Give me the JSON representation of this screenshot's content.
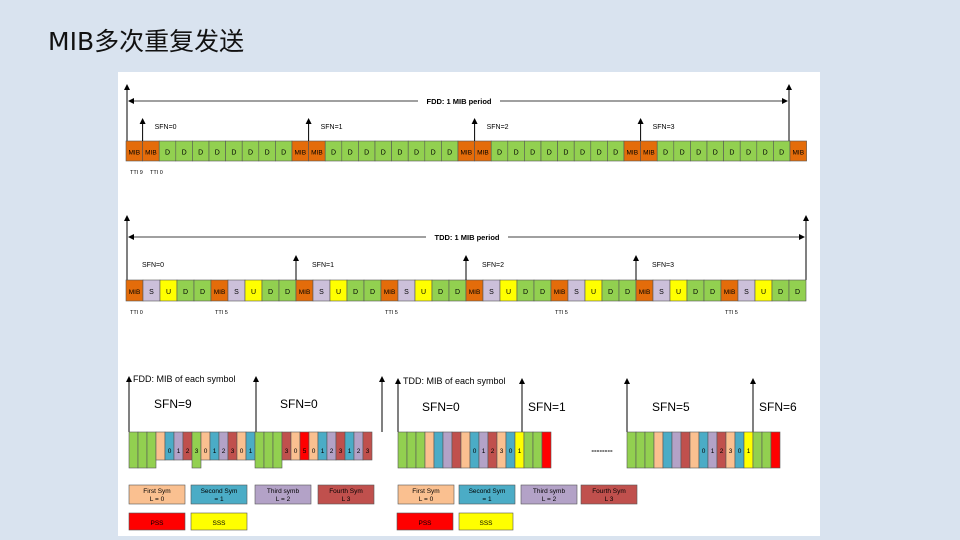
{
  "title": "MIB多次重复发送",
  "colors": {
    "mib": "#e46c0a",
    "d": "#92d050",
    "s": "#ccc0da",
    "u": "#ffff00",
    "l0": "#fac090",
    "l1": "#4bacc6",
    "l2": "#b3a2c7",
    "l3": "#c0504d",
    "pss": "#ff0000",
    "sss": "#ffff00"
  },
  "fdd": {
    "period_label": "FDD: 1 MIB period",
    "sfn_labels": [
      "SFN=0",
      "SFN=1",
      "SFN=2",
      "SFN=3"
    ],
    "cells": [
      "MIB",
      "MIB",
      "D",
      "D",
      "D",
      "D",
      "D",
      "D",
      "D",
      "D",
      "MIB",
      "MIB",
      "D",
      "D",
      "D",
      "D",
      "D",
      "D",
      "D",
      "D",
      "MIB",
      "MIB",
      "D",
      "D",
      "D",
      "D",
      "D",
      "D",
      "D",
      "D",
      "MIB",
      "MIB",
      "D",
      "D",
      "D",
      "D",
      "D",
      "D",
      "D",
      "D",
      "MIB"
    ],
    "tti_labels": [
      "TTI 9",
      "TTI 0"
    ]
  },
  "tdd": {
    "period_label": "TDD: 1 MIB period",
    "sfn_labels": [
      "SFN=0",
      "SFN=1",
      "SFN=2",
      "SFN=3"
    ],
    "cells": [
      "MIB",
      "S",
      "U",
      "D",
      "D",
      "MIB",
      "S",
      "U",
      "D",
      "D",
      "MIB",
      "S",
      "U",
      "D",
      "D",
      "MIB",
      "S",
      "U",
      "D",
      "D",
      "MIB",
      "S",
      "U",
      "D",
      "D",
      "MIB",
      "S",
      "U",
      "D",
      "D",
      "MIB",
      "S",
      "U",
      "D",
      "D",
      "MIB",
      "S",
      "U",
      "D",
      "D"
    ],
    "tti_labels": [
      "TTI 0",
      "TTI 5",
      "TTI 5",
      "TTI 5",
      "TTI 5"
    ]
  },
  "fdd_symbol": {
    "title": "FDD: MIB of each symbol",
    "sfn_labels": [
      "SFN=9",
      "SFN=0"
    ],
    "digits_1": [
      "0",
      "1",
      "2",
      "3",
      "0",
      "1",
      "2",
      "3",
      "0",
      "1",
      "2"
    ],
    "digits_2": [
      "3",
      "0",
      "5",
      "0",
      "1",
      "2",
      "3",
      "1",
      "2",
      "3"
    ]
  },
  "tdd_symbol": {
    "title": "TDD: MIB of each symbol",
    "sfn_labels": [
      "SFN=0",
      "SFN=1",
      "SFN=5",
      "SFN=6"
    ],
    "digits_1": [
      "0",
      "1",
      "2",
      "3",
      "0",
      "1"
    ],
    "digits_2": [
      "0",
      "1",
      "2",
      "3",
      "0",
      "1"
    ],
    "ellipsis": "--------"
  },
  "legend": {
    "first_sym": [
      "First Sym",
      "L = 0"
    ],
    "second_sym": [
      "Second Sym",
      "= 1"
    ],
    "third_sym": [
      "Third symb",
      "L = 2"
    ],
    "fourth_sym": [
      "Fourth Sym",
      "L 3"
    ],
    "pss": "PSS",
    "sss": "SSS"
  }
}
